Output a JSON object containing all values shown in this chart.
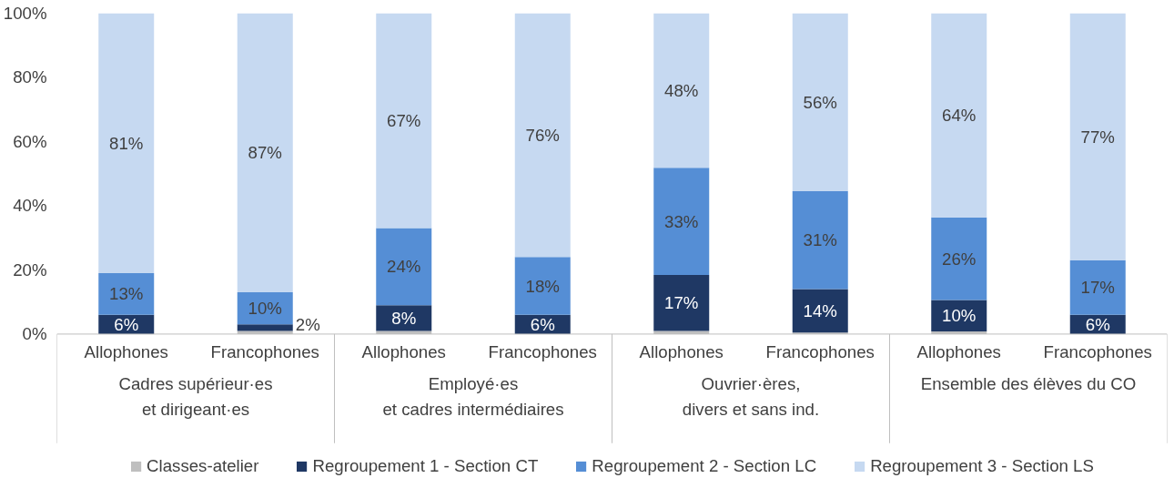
{
  "chart_data": {
    "type": "bar",
    "stacked": true,
    "categories": [
      "Allophones",
      "Francophones",
      "Allophones",
      "Francophones",
      "Allophones",
      "Francophones",
      "Allophones",
      "Francophones"
    ],
    "annotations": [
      "Cadres supérieur·es\net dirigeant·es",
      "Employé·es\net cadres intermédiaires",
      "Ouvrier·ères,\ndivers et sans ind.",
      "Ensemble des élèves du CO"
    ],
    "series": [
      {
        "name": "Classes-atelier",
        "color": "#bfbfbf",
        "values": [
          0,
          1,
          1,
          0,
          1,
          0.5,
          0.8,
          0
        ]
      },
      {
        "name": "Regroupement 1 - Section CT",
        "color": "#1f3864",
        "values": [
          6,
          2,
          8,
          6,
          17.4,
          13.5,
          9.8,
          6
        ],
        "value_labels": [
          "6%",
          "2%",
          "8%",
          "6%",
          "17%",
          "14%",
          "10%",
          "6%"
        ]
      },
      {
        "name": "Regroupement 2 - Section LC",
        "color": "#558ed5",
        "values": [
          13,
          10,
          24,
          18,
          33.4,
          30.5,
          25.8,
          17
        ],
        "value_labels": [
          "13%",
          "10%",
          "24%",
          "18%",
          "33%",
          "31%",
          "26%",
          "17%"
        ]
      },
      {
        "name": "Regroupement 3 - Section LS",
        "color": "#c6d9f1",
        "values": [
          81,
          87,
          67,
          76,
          48.2,
          55.5,
          63.6,
          77
        ],
        "value_labels": [
          "81%",
          "87%",
          "67%",
          "76%",
          "48%",
          "56%",
          "64%",
          "77%"
        ]
      }
    ],
    "ylim": [
      0,
      100
    ],
    "yticks": [
      {
        "value": 0,
        "label": "0%"
      },
      {
        "value": 20,
        "label": "20%"
      },
      {
        "value": 40,
        "label": "40%"
      },
      {
        "value": 60,
        "label": "60%"
      },
      {
        "value": 80,
        "label": "80%"
      },
      {
        "value": 100,
        "label": "100%"
      }
    ],
    "grid": false,
    "legend": "bottom"
  }
}
